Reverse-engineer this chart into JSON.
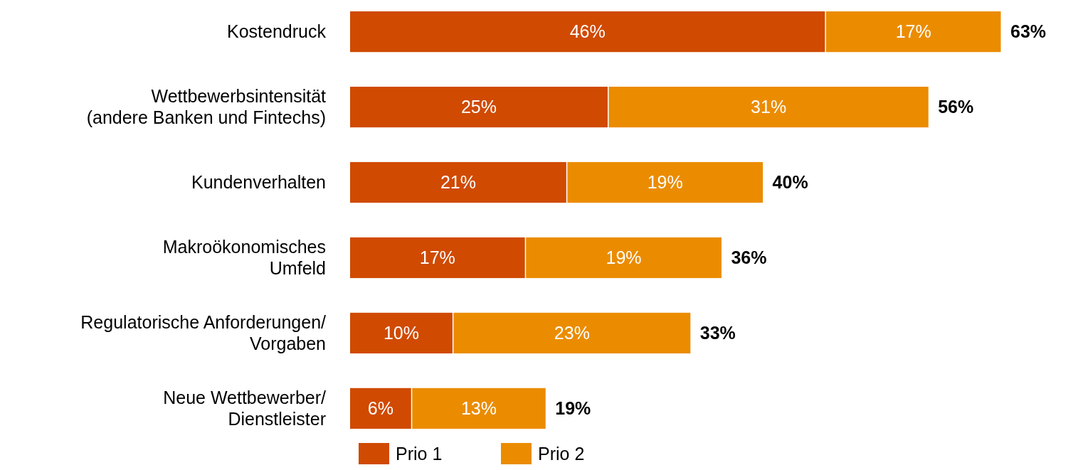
{
  "chart_data": {
    "type": "bar",
    "orientation": "horizontal",
    "stacked": true,
    "categories": [
      "Kostendruck",
      "Wettbewerbsintensität\n(andere Banken und Fintechs)",
      "Kundenverhalten",
      "Makroökonomisches\nUmfeld",
      "Regulatorische Anforderungen/\nVorgaben",
      "Neue Wettbewerber/\nDienstleister"
    ],
    "series": [
      {
        "name": "Prio 1",
        "color": "#d04a02",
        "values": [
          46,
          25,
          21,
          17,
          10,
          6
        ],
        "value_labels": [
          "46%",
          "25%",
          "21%",
          "17%",
          "10%",
          "6%"
        ]
      },
      {
        "name": "Prio 2",
        "color": "#eb8c00",
        "values": [
          17,
          31,
          19,
          19,
          23,
          13
        ],
        "value_labels": [
          "17%",
          "31%",
          "19%",
          "19%",
          "23%",
          "13%"
        ]
      }
    ],
    "totals": [
      "63%",
      "56%",
      "40%",
      "36%",
      "33%",
      "19%"
    ],
    "legend": "bottom"
  }
}
